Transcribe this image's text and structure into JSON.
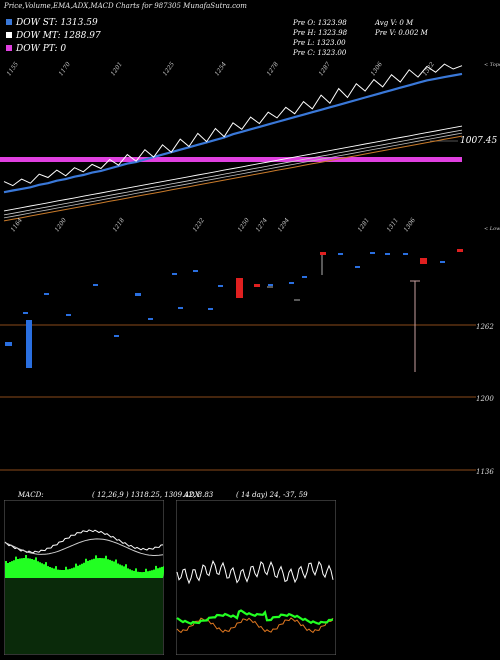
{
  "title": "Price,Volume,EMA,ADX,MACD Charts for 987305 MunafaSutra.com",
  "legend": [
    {
      "label": "DOW ST: 1313.59",
      "color": "#3a78d8"
    },
    {
      "label": "DOW MT: 1288.97",
      "color": "#ffffff"
    },
    {
      "label": "DOW PT: 0",
      "color": "#e040e0"
    }
  ],
  "ohlc": {
    "open": "Pre   O: 1323.98",
    "high": "Pre   H: 1323.98",
    "low": "Pre   L: 1323.00",
    "close": "Pre   C: 1323.00",
    "avg_vol": "Avg V: 0   M",
    "pre_vol": "Pre   V: 0.002  M"
  },
  "colors": {
    "background": "#000000",
    "price_line": "#ffffff",
    "short_ema": "#3a78d8",
    "long_ema": "#d0d0d0",
    "orange_line": "#c87a2a",
    "pivot_band": "#e040e0",
    "candle_up": "#2a6fe0",
    "candle_down": "#e02020",
    "grid_line": "#8a4a1a",
    "macd_fill": "#22ff22",
    "adx_bg": "#000000",
    "adx_green": "#22ff22",
    "adx_orange": "#e07820"
  },
  "chart_data": [
    {
      "type": "line",
      "panel": "price",
      "right_label": "1007.45",
      "corner_label": "< Topo",
      "top_tick_labels": [
        "1155",
        "1170",
        "1201",
        "1225",
        "1254",
        "1278",
        "1287",
        "1306",
        "1322"
      ],
      "series": [
        {
          "role": "close",
          "values": [
            1181,
            1176,
            1184,
            1179,
            1190,
            1186,
            1195,
            1188,
            1198,
            1193,
            1202,
            1197,
            1208,
            1201,
            1214,
            1206,
            1220,
            1211,
            1226,
            1217,
            1233,
            1224,
            1240,
            1230,
            1246,
            1236,
            1253,
            1245,
            1260,
            1252,
            1266,
            1259,
            1272,
            1264,
            1279,
            1270,
            1287,
            1277,
            1295,
            1284,
            1301,
            1292,
            1306,
            1297,
            1312,
            1303,
            1318,
            1309,
            1322,
            1315,
            1325,
            1319,
            1323
          ]
        },
        {
          "role": "ema_short",
          "values": [
            1168,
            1170,
            1172,
            1174,
            1177,
            1179,
            1182,
            1184,
            1187,
            1189,
            1192,
            1194,
            1197,
            1200,
            1203,
            1205,
            1208,
            1211,
            1214,
            1217,
            1220,
            1223,
            1226,
            1229,
            1232,
            1235,
            1239,
            1242,
            1245,
            1248,
            1251,
            1254,
            1257,
            1260,
            1263,
            1266,
            1269,
            1272,
            1275,
            1278,
            1281,
            1284,
            1287,
            1290,
            1293,
            1296,
            1299,
            1302,
            1305,
            1307,
            1309,
            1311,
            1313
          ]
        },
        {
          "role": "ema_long",
          "values": [
            1145,
            1147,
            1149,
            1151,
            1153,
            1155,
            1157,
            1159,
            1161,
            1163,
            1165,
            1167,
            1169,
            1171,
            1173,
            1175,
            1177,
            1179,
            1181,
            1183,
            1185,
            1187,
            1189,
            1191,
            1193,
            1195,
            1197,
            1199,
            1201,
            1203,
            1205,
            1207,
            1209,
            1211,
            1213,
            1215,
            1217,
            1219,
            1221,
            1223,
            1225,
            1227,
            1229,
            1231,
            1233,
            1235,
            1237,
            1239,
            1241,
            1243,
            1245,
            1247,
            1249
          ]
        }
      ]
    },
    {
      "type": "bar",
      "panel": "candles",
      "corner_label": "< Lowe",
      "top_tick_labels": [
        "1164",
        "1200",
        "1218",
        "1232",
        "1250",
        "1274",
        "1294",
        "1281",
        "1311",
        "1306"
      ],
      "right_labels": [
        "1262",
        "1200",
        "1136"
      ]
    },
    {
      "type": "area",
      "panel": "macd",
      "label": "MACD:",
      "params": "( 12,26,9 ) 1318.25,  1309.42,  8.83"
    },
    {
      "type": "line",
      "panel": "adx",
      "label": "ADX",
      "params": "( 14  day) 24,  -37,  59"
    }
  ]
}
